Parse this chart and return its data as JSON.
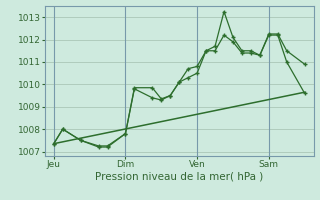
{
  "background_color": "#ceeade",
  "grid_color": "#b0ccbc",
  "line_color": "#2d6e2d",
  "xlabel": "Pression niveau de la mer( hPa )",
  "ylim": [
    1006.8,
    1013.5
  ],
  "yticks": [
    1007,
    1008,
    1009,
    1010,
    1011,
    1012,
    1013
  ],
  "xtick_labels": [
    "Jeu",
    "Dim",
    "Ven",
    "Sam"
  ],
  "xtick_positions": [
    1,
    5,
    9,
    13
  ],
  "vline_positions": [
    1,
    5,
    9,
    13
  ],
  "xlim": [
    0.5,
    15.5
  ],
  "line1_x": [
    1,
    1.5,
    2.5,
    3.5,
    4,
    5,
    5.5,
    6.5,
    7,
    7.5,
    8,
    8.5,
    9,
    9.5,
    10,
    10.5,
    11,
    11.5,
    12,
    12.5,
    13,
    13.5,
    14,
    15
  ],
  "line1_y": [
    1007.35,
    1008.0,
    1007.5,
    1007.25,
    1007.25,
    1007.8,
    1009.85,
    1009.85,
    1009.35,
    1009.5,
    1010.1,
    1010.7,
    1010.8,
    1011.5,
    1011.7,
    1013.25,
    1012.1,
    1011.5,
    1011.5,
    1011.3,
    1012.25,
    1012.25,
    1011.5,
    1010.9
  ],
  "line2_x": [
    1,
    1.5,
    2.5,
    3.5,
    4,
    5,
    5.5,
    6.5,
    7,
    7.5,
    8,
    8.5,
    9,
    9.5,
    10,
    10.5,
    11,
    11.5,
    12,
    12.5,
    13,
    13.5,
    14,
    15
  ],
  "line2_y": [
    1007.35,
    1008.0,
    1007.5,
    1007.2,
    1007.2,
    1007.8,
    1009.8,
    1009.4,
    1009.3,
    1009.5,
    1010.1,
    1010.3,
    1010.5,
    1011.5,
    1011.5,
    1012.2,
    1011.9,
    1011.4,
    1011.4,
    1011.3,
    1012.2,
    1012.2,
    1011.0,
    1009.6
  ],
  "trend_x": [
    1,
    15
  ],
  "trend_y": [
    1007.35,
    1009.65
  ],
  "ylabel_fontsize": 7.5,
  "tick_fontsize": 6.5,
  "tick_color": "#336633",
  "spine_color": "#7799aa"
}
